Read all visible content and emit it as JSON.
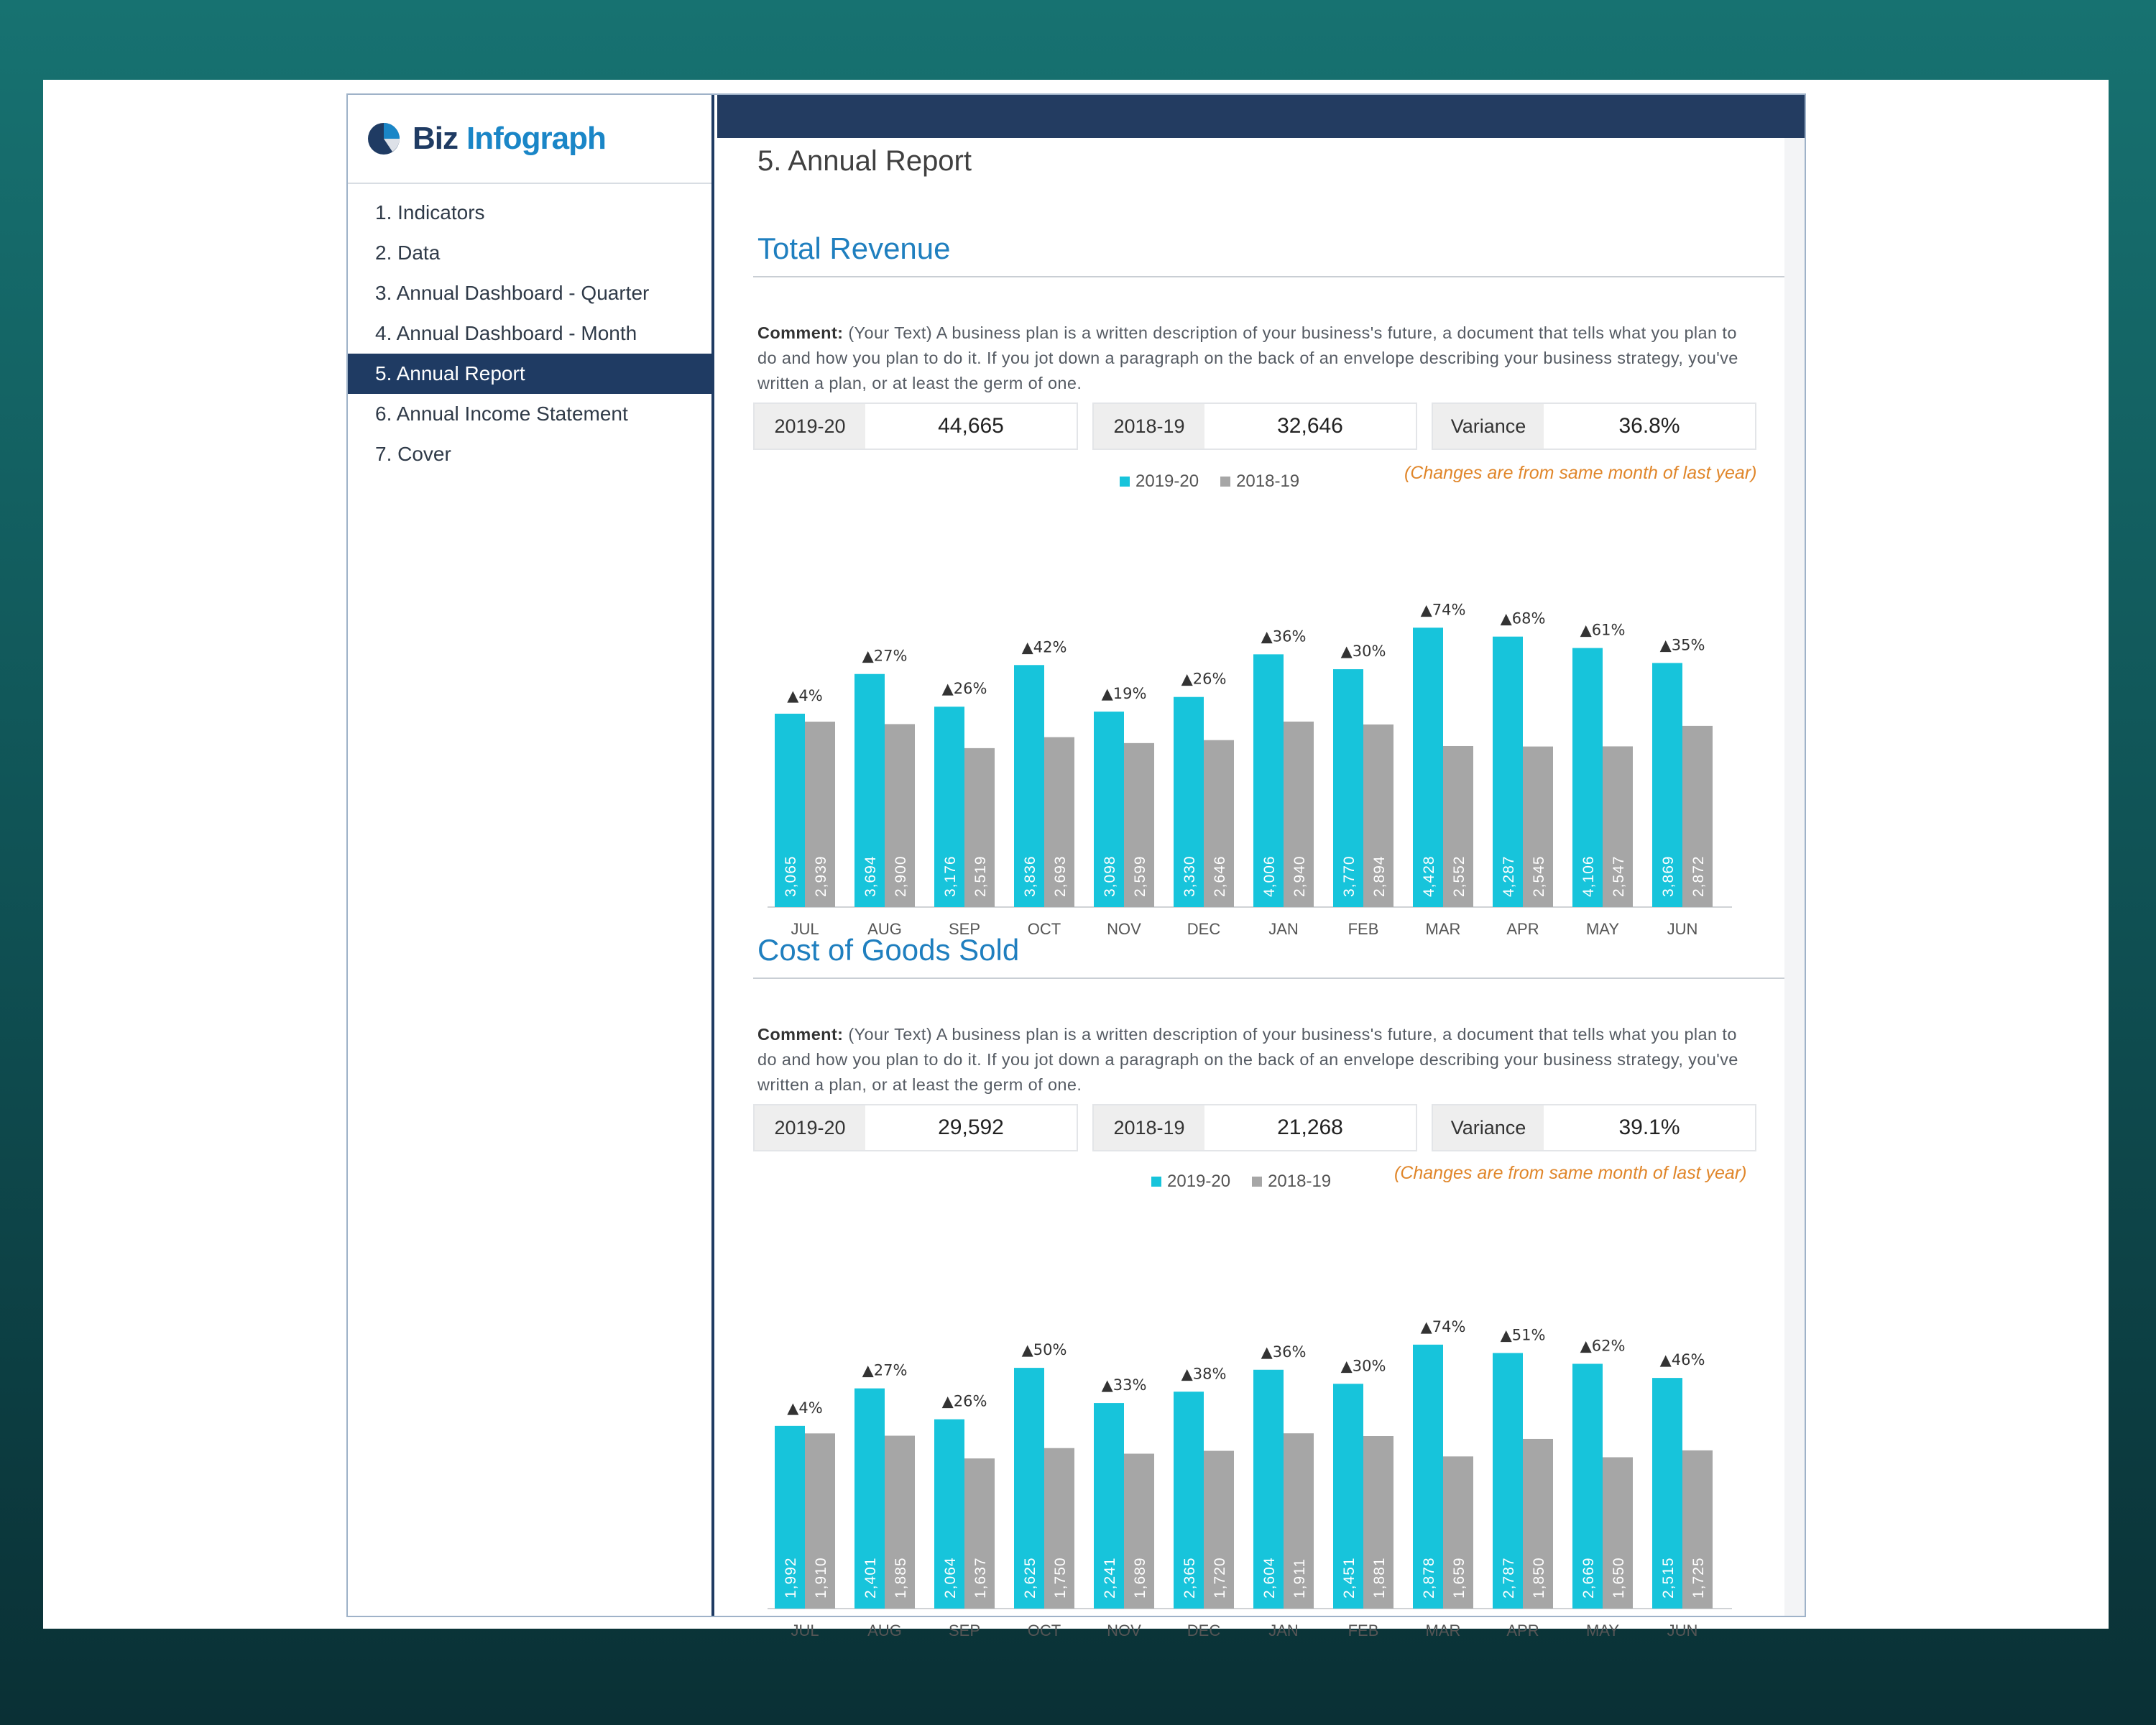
{
  "app": {
    "logo_biz": "Biz",
    "logo_infograph": "Infograph"
  },
  "sidebar": {
    "items": [
      {
        "label": "1. Indicators",
        "active": false
      },
      {
        "label": "2. Data",
        "active": false
      },
      {
        "label": "3. Annual Dashboard - Quarter",
        "active": false
      },
      {
        "label": "4. Annual Dashboard - Month",
        "active": false
      },
      {
        "label": "5. Annual Report",
        "active": true
      },
      {
        "label": "6. Annual Income Statement",
        "active": false
      },
      {
        "label": "7. Cover",
        "active": false
      }
    ]
  },
  "page": {
    "title": "5. Annual Report"
  },
  "colors": {
    "current": "#17c4db",
    "previous": "#a6a6a6",
    "accent": "#1f7fbf",
    "note": "#e0862a",
    "nav": "#1f3b63"
  },
  "sections": [
    {
      "title": "Total Revenue",
      "comment_label": "Comment:",
      "comment_text": " (Your Text) A business plan is a written description of your business's future, a document that tells what you plan to do and how you plan to do it. If you jot down a paragraph on the back of an envelope describing your business strategy, you've written a plan, or at least the germ of one.",
      "kpis": [
        {
          "label": "2019-20",
          "value": "44,665"
        },
        {
          "label": "2018-19",
          "value": "32,646"
        },
        {
          "label": "Variance",
          "value": "36.8%"
        }
      ],
      "note": "(Changes are from same month of last year)",
      "legend": [
        "2019-20",
        "2018-19"
      ]
    },
    {
      "title": "Cost of Goods Sold",
      "comment_label": "Comment:",
      "comment_text": " (Your Text) A business plan is a written description of your business's future, a document that tells what you plan to do and how you plan to do it. If you jot down a paragraph on the back of an envelope describing your business strategy, you've written a plan, or at least the germ of one.",
      "kpis": [
        {
          "label": "2019-20",
          "value": "29,592"
        },
        {
          "label": "2018-19",
          "value": "21,268"
        },
        {
          "label": "Variance",
          "value": "39.1%"
        }
      ],
      "note": "(Changes are from same month of last year)",
      "legend": [
        "2019-20",
        "2018-19"
      ]
    }
  ],
  "chart_data": [
    {
      "type": "bar",
      "categories": [
        "JUL",
        "AUG",
        "SEP",
        "OCT",
        "NOV",
        "DEC",
        "JAN",
        "FEB",
        "MAR",
        "APR",
        "MAY",
        "JUN"
      ],
      "series": [
        {
          "name": "2019-20",
          "values": [
            3065,
            3694,
            3176,
            3836,
            3098,
            3330,
            4006,
            3770,
            4428,
            4287,
            4106,
            3869
          ]
        },
        {
          "name": "2018-19",
          "values": [
            2939,
            2900,
            2519,
            2693,
            2599,
            2646,
            2940,
            2894,
            2552,
            2545,
            2547,
            2872
          ]
        }
      ],
      "value_labels_current": [
        "3,065",
        "3,694",
        "3,176",
        "3,836",
        "3,098",
        "3,330",
        "4,006",
        "3,770",
        "4,428",
        "4,287",
        "4,106",
        "3,869"
      ],
      "value_labels_previous": [
        "2,939",
        "2,900",
        "2,519",
        "2,693",
        "2,599",
        "2,646",
        "2,940",
        "2,894",
        "2,552",
        "2,545",
        "2,547",
        "2,872"
      ],
      "change_labels": [
        "▲4%",
        "▲27%",
        "▲26%",
        "▲42%",
        "▲19%",
        "▲26%",
        "▲36%",
        "▲30%",
        "▲74%",
        "▲68%",
        "▲61%",
        "▲35%"
      ],
      "ylim": [
        0,
        4500
      ],
      "legend": "top"
    },
    {
      "type": "bar",
      "categories": [
        "JUL",
        "AUG",
        "SEP",
        "OCT",
        "NOV",
        "DEC",
        "JAN",
        "FEB",
        "MAR",
        "APR",
        "MAY",
        "JUN"
      ],
      "series": [
        {
          "name": "2019-20",
          "values": [
            1992,
            2401,
            2064,
            2625,
            2241,
            2365,
            2604,
            2451,
            2878,
            2787,
            2669,
            2515
          ]
        },
        {
          "name": "2018-19",
          "values": [
            1910,
            1885,
            1637,
            1750,
            1689,
            1720,
            1911,
            1881,
            1659,
            1850,
            1650,
            1725
          ]
        }
      ],
      "value_labels_current": [
        "1,992",
        "2,401",
        "2,064",
        "2,625",
        "2,241",
        "2,365",
        "2,604",
        "2,451",
        "2,878",
        "2,787",
        "2,669",
        "2,515"
      ],
      "value_labels_previous": [
        "1,910",
        "1,885",
        "1,637",
        "1,750",
        "1,689",
        "1,720",
        "1,911",
        "1,881",
        "1,659",
        "1,850",
        "1,650",
        "1,725"
      ],
      "change_labels": [
        "▲4%",
        "▲27%",
        "▲26%",
        "▲50%",
        "▲33%",
        "▲38%",
        "▲36%",
        "▲30%",
        "▲74%",
        "▲51%",
        "▲62%",
        "▲46%"
      ],
      "ylim": [
        0,
        2900
      ],
      "legend": "top"
    }
  ]
}
